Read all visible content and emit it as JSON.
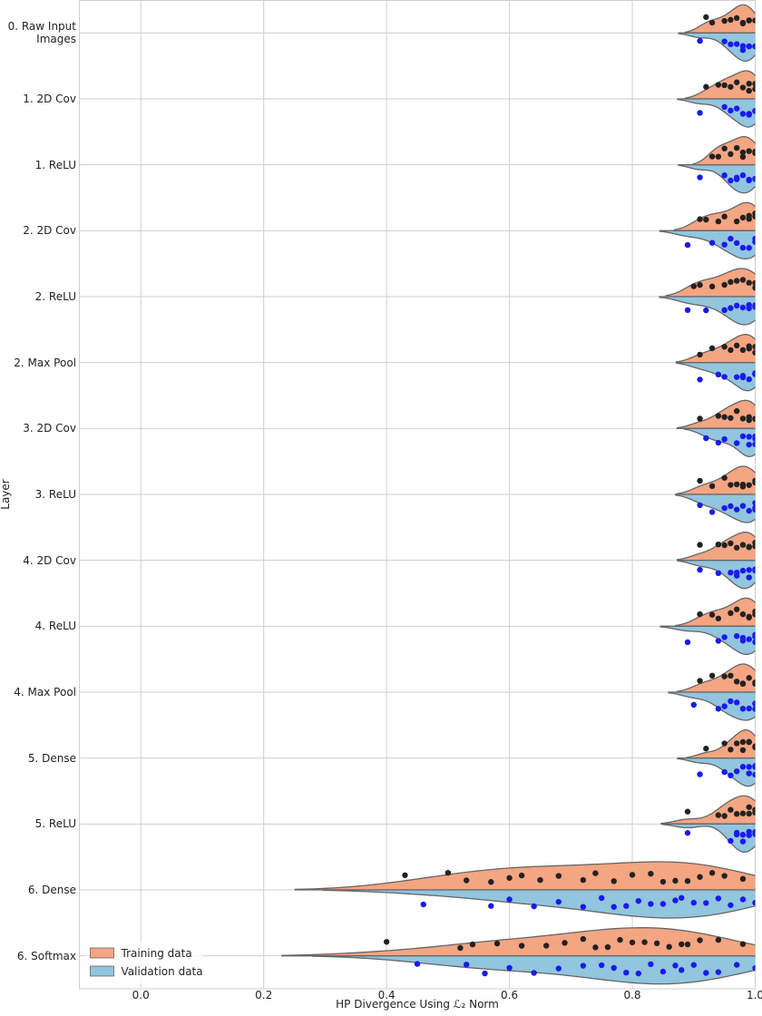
{
  "chart_data": {
    "type": "split-violin",
    "xlabel": "HP Divergence Using ℒ₂ Norm",
    "ylabel": "Layer",
    "categories": [
      "0. Raw Input\nImages",
      "1. 2D Cov",
      "1. ReLU",
      "2. 2D Cov",
      "2. ReLU",
      "2. Max Pool",
      "3. 2D Cov",
      "3. ReLU",
      "4. 2D Cov",
      "4. ReLU",
      "4. Max Pool",
      "5. Dense",
      "5. ReLU",
      "6. Dense",
      "6. Softmax"
    ],
    "xlim": [
      -0.1,
      1.0
    ],
    "xticks": [
      {
        "value": 0,
        "label": "0.0"
      },
      {
        "value": 0.2,
        "label": "0.2"
      },
      {
        "value": 0.4,
        "label": "0.4"
      },
      {
        "value": 0.6,
        "label": "0.6"
      },
      {
        "value": 0.8,
        "label": "0.8"
      },
      {
        "value": 1,
        "label": "1.0"
      }
    ],
    "grid": true,
    "legend": "lower left",
    "series": [
      {
        "name": "Training data",
        "color": "#f4a582",
        "point_color": "#222222",
        "values": [
          [
            0.92,
            0.93,
            0.95,
            0.96,
            0.97,
            0.98,
            0.98,
            0.99,
            0.99,
            1.0
          ],
          [
            0.92,
            0.94,
            0.95,
            0.96,
            0.97,
            0.98,
            0.99,
            0.99,
            1.0,
            1.0
          ],
          [
            0.93,
            0.94,
            0.95,
            0.96,
            0.97,
            0.98,
            0.98,
            0.99,
            1.0,
            1.0
          ],
          [
            0.91,
            0.92,
            0.94,
            0.95,
            0.97,
            0.98,
            0.99,
            0.99,
            1.0,
            1.0
          ],
          [
            0.9,
            0.91,
            0.93,
            0.95,
            0.96,
            0.97,
            0.98,
            0.99,
            1.0,
            1.0
          ],
          [
            0.91,
            0.93,
            0.95,
            0.96,
            0.97,
            0.98,
            0.99,
            0.99,
            1.0,
            1.0
          ],
          [
            0.91,
            0.94,
            0.95,
            0.96,
            0.97,
            0.98,
            0.99,
            0.99,
            1.0,
            1.0
          ],
          [
            0.91,
            0.93,
            0.95,
            0.96,
            0.97,
            0.98,
            0.98,
            0.99,
            1.0,
            1.0
          ],
          [
            0.91,
            0.94,
            0.95,
            0.96,
            0.97,
            0.98,
            0.99,
            0.99,
            1.0,
            1.0
          ],
          [
            0.91,
            0.93,
            0.94,
            0.96,
            0.97,
            0.98,
            0.99,
            0.99,
            1.0,
            1.0
          ],
          [
            0.91,
            0.93,
            0.95,
            0.96,
            0.97,
            0.98,
            0.98,
            0.99,
            1.0,
            1.0
          ],
          [
            0.92,
            0.95,
            0.96,
            0.97,
            0.98,
            0.98,
            0.99,
            0.99,
            1.0,
            1.0
          ],
          [
            0.89,
            0.94,
            0.95,
            0.96,
            0.97,
            0.98,
            0.99,
            0.99,
            1.0,
            1.0
          ],
          [
            0.43,
            0.5,
            0.53,
            0.57,
            0.6,
            0.62,
            0.65,
            0.68,
            0.72,
            0.74,
            0.77,
            0.8,
            0.83,
            0.85,
            0.87,
            0.89,
            0.91,
            0.93,
            0.95,
            0.98
          ],
          [
            0.4,
            0.52,
            0.54,
            0.58,
            0.62,
            0.66,
            0.69,
            0.72,
            0.74,
            0.76,
            0.78,
            0.8,
            0.82,
            0.84,
            0.86,
            0.88,
            0.89,
            0.91,
            0.94,
            0.98
          ]
        ]
      },
      {
        "name": "Validation data",
        "color": "#92c5de",
        "point_color": "#1a1aee",
        "values": [
          [
            0.91,
            0.95,
            0.96,
            0.97,
            0.98,
            0.98,
            0.99,
            0.99,
            1.0,
            1.0
          ],
          [
            0.91,
            0.95,
            0.96,
            0.97,
            0.98,
            0.99,
            0.99,
            1.0,
            1.0,
            1.0
          ],
          [
            0.91,
            0.95,
            0.96,
            0.97,
            0.97,
            0.98,
            0.99,
            0.99,
            1.0,
            1.0
          ],
          [
            0.89,
            0.93,
            0.95,
            0.96,
            0.97,
            0.98,
            0.99,
            1.0,
            1.0,
            1.0
          ],
          [
            0.89,
            0.92,
            0.95,
            0.96,
            0.97,
            0.98,
            0.99,
            0.99,
            1.0,
            1.0
          ],
          [
            0.91,
            0.94,
            0.95,
            0.97,
            0.98,
            0.98,
            0.99,
            1.0,
            1.0,
            1.0
          ],
          [
            0.92,
            0.94,
            0.95,
            0.97,
            0.98,
            0.99,
            0.99,
            1.0,
            1.0,
            1.0
          ],
          [
            0.91,
            0.93,
            0.95,
            0.96,
            0.97,
            0.98,
            0.99,
            1.0,
            1.0,
            1.0
          ],
          [
            0.91,
            0.94,
            0.96,
            0.97,
            0.97,
            0.98,
            0.99,
            0.99,
            1.0,
            1.0
          ],
          [
            0.89,
            0.94,
            0.95,
            0.97,
            0.98,
            0.98,
            0.99,
            1.0,
            1.0,
            1.0
          ],
          [
            0.9,
            0.94,
            0.95,
            0.96,
            0.97,
            0.98,
            0.99,
            1.0,
            1.0,
            1.0
          ],
          [
            0.91,
            0.95,
            0.96,
            0.97,
            0.98,
            0.99,
            0.99,
            1.0,
            1.0,
            1.0
          ],
          [
            0.89,
            0.96,
            0.97,
            0.97,
            0.98,
            0.98,
            0.99,
            0.99,
            1.0,
            1.0
          ],
          [
            0.46,
            0.57,
            0.6,
            0.64,
            0.68,
            0.72,
            0.75,
            0.77,
            0.79,
            0.81,
            0.83,
            0.85,
            0.87,
            0.88,
            0.9,
            0.92,
            0.94,
            0.96,
            0.98,
            1.0
          ],
          [
            0.45,
            0.53,
            0.56,
            0.6,
            0.64,
            0.68,
            0.72,
            0.75,
            0.77,
            0.79,
            0.81,
            0.83,
            0.85,
            0.87,
            0.88,
            0.9,
            0.92,
            0.94,
            0.97,
            1.0
          ]
        ]
      }
    ]
  }
}
